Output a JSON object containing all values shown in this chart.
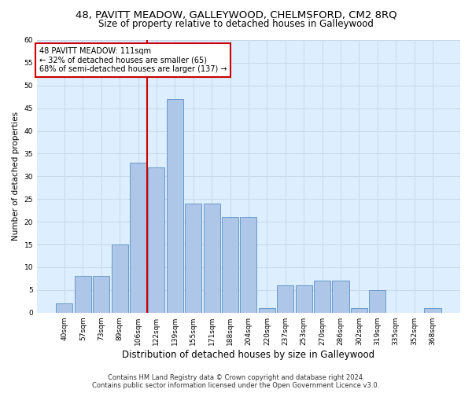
{
  "title1": "48, PAVITT MEADOW, GALLEYWOOD, CHELMSFORD, CM2 8RQ",
  "title2": "Size of property relative to detached houses in Galleywood",
  "xlabel": "Distribution of detached houses by size in Galleywood",
  "ylabel": "Number of detached properties",
  "annotation_line1": "48 PAVITT MEADOW: 111sqm",
  "annotation_line2": "← 32% of detached houses are smaller (65)",
  "annotation_line3": "68% of semi-detached houses are larger (137) →",
  "bin_labels": [
    "40sqm",
    "57sqm",
    "73sqm",
    "89sqm",
    "106sqm",
    "122sqm",
    "139sqm",
    "155sqm",
    "171sqm",
    "188sqm",
    "204sqm",
    "220sqm",
    "237sqm",
    "253sqm",
    "270sqm",
    "286sqm",
    "302sqm",
    "319sqm",
    "335sqm",
    "352sqm",
    "368sqm"
  ],
  "bar_values": [
    2,
    8,
    8,
    15,
    33,
    32,
    47,
    24,
    24,
    21,
    21,
    1,
    6,
    6,
    7,
    7,
    1,
    5,
    0,
    0,
    1
  ],
  "bar_color": "#aec6e8",
  "bar_edge_color": "#5a8fc2",
  "red_line_index": 5,
  "red_line_color": "#cc0000",
  "annotation_box_color": "#ffffff",
  "annotation_box_edge": "#cc0000",
  "ylim": [
    0,
    60
  ],
  "yticks": [
    0,
    5,
    10,
    15,
    20,
    25,
    30,
    35,
    40,
    45,
    50,
    55,
    60
  ],
  "grid_color": "#c8d8e8",
  "background_color": "#ddeeff",
  "footer_line1": "Contains HM Land Registry data © Crown copyright and database right 2024.",
  "footer_line2": "Contains public sector information licensed under the Open Government Licence v3.0.",
  "title1_fontsize": 9.5,
  "title2_fontsize": 8.5,
  "ylabel_fontsize": 7.5,
  "xlabel_fontsize": 8.5,
  "tick_fontsize": 6.5,
  "annotation_fontsize": 7,
  "footer_fontsize": 6
}
